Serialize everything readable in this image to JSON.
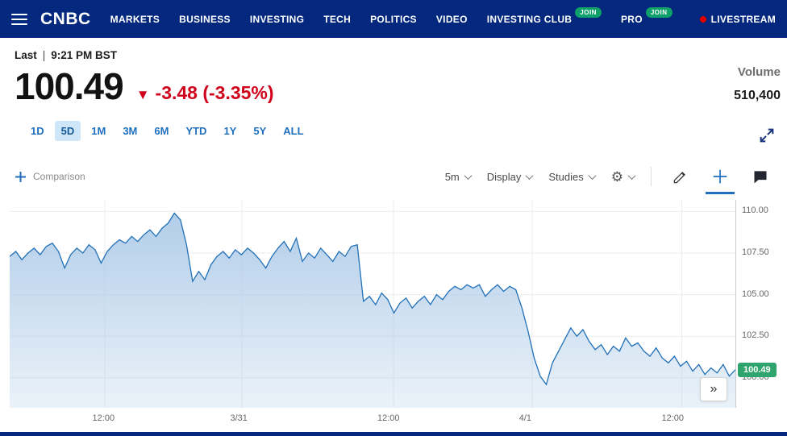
{
  "nav": {
    "logo": "CNBC",
    "items": [
      {
        "label": "MARKETS"
      },
      {
        "label": "BUSINESS"
      },
      {
        "label": "INVESTING"
      },
      {
        "label": "TECH"
      },
      {
        "label": "POLITICS"
      },
      {
        "label": "VIDEO"
      },
      {
        "label": "INVESTING CLUB",
        "badge": "JOIN"
      },
      {
        "label": "PRO",
        "badge": "JOIN"
      }
    ],
    "livestream": {
      "label": "LIVESTREAM"
    }
  },
  "quote": {
    "last_label": "Last",
    "separator": "|",
    "time": "9:21 PM BST",
    "price": "100.49",
    "direction": "▼",
    "change": "-3.48 (-3.35%)",
    "volume_label": "Volume",
    "volume_value": "510,400"
  },
  "ranges": {
    "items": [
      "1D",
      "5D",
      "1M",
      "3M",
      "6M",
      "YTD",
      "1Y",
      "5Y",
      "ALL"
    ],
    "active": "5D"
  },
  "toolbar": {
    "comparison_label": "Comparison",
    "interval": "5m",
    "display": "Display",
    "studies": "Studies"
  },
  "chart_data": {
    "type": "area",
    "interval": "5m",
    "grid": "on",
    "ylim": [
      98.2,
      110.7
    ],
    "yticks": [
      110.0,
      107.5,
      105.0,
      102.5,
      100.0
    ],
    "xticks": [
      {
        "label": "12:00",
        "pos": 0.131
      },
      {
        "label": "3/31",
        "pos": 0.32
      },
      {
        "label": "12:00",
        "pos": 0.529
      },
      {
        "label": "4/1",
        "pos": 0.72
      },
      {
        "label": "12:00",
        "pos": 0.926
      }
    ],
    "price_tag": {
      "value": "100.49"
    },
    "line_color": "#2170b8",
    "fill_color": "#aecbe8",
    "values": [
      107.3,
      107.6,
      107.1,
      107.5,
      107.8,
      107.4,
      107.9,
      108.1,
      107.6,
      106.6,
      107.4,
      107.8,
      107.5,
      108.0,
      107.7,
      106.9,
      107.6,
      108.0,
      108.3,
      108.1,
      108.5,
      108.2,
      108.6,
      108.9,
      108.5,
      109.0,
      109.3,
      109.9,
      109.5,
      108.0,
      105.8,
      106.4,
      105.9,
      106.8,
      107.3,
      107.6,
      107.2,
      107.7,
      107.4,
      107.8,
      107.5,
      107.1,
      106.6,
      107.3,
      107.8,
      108.2,
      107.6,
      108.4,
      107.0,
      107.5,
      107.2,
      107.8,
      107.4,
      107.0,
      107.6,
      107.3,
      107.9,
      108.0,
      104.6,
      104.9,
      104.4,
      105.1,
      104.7,
      103.9,
      104.5,
      104.8,
      104.2,
      104.6,
      104.9,
      104.4,
      105.0,
      104.7,
      105.2,
      105.5,
      105.3,
      105.6,
      105.4,
      105.6,
      104.9,
      105.3,
      105.6,
      105.2,
      105.5,
      105.3,
      104.2,
      102.8,
      101.2,
      100.1,
      99.6,
      100.9,
      101.6,
      102.3,
      103.0,
      102.5,
      102.9,
      102.2,
      101.7,
      102.0,
      101.4,
      101.9,
      101.6,
      102.4,
      101.9,
      102.1,
      101.6,
      101.3,
      101.8,
      101.2,
      100.9,
      101.3,
      100.7,
      101.0,
      100.4,
      100.8,
      100.2,
      100.6,
      100.3,
      100.8,
      100.1,
      100.49
    ]
  },
  "colors": {
    "nav_bg": "#04287e",
    "accent_blue": "#1f6fbe",
    "down_red": "#d0021b",
    "join_green": "#0fa06b",
    "live_red": "#e40000",
    "tag_green": "#2fa46c",
    "active_tab_bg": "#cfe6f8"
  }
}
